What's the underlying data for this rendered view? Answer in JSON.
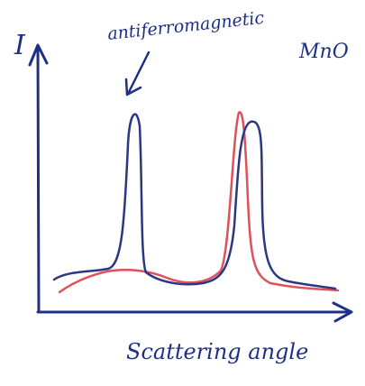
{
  "y_axis_label": "I",
  "annotation": "antiferromagnetic",
  "material": "MnO",
  "x_axis_label": "Scattering angle"
}
